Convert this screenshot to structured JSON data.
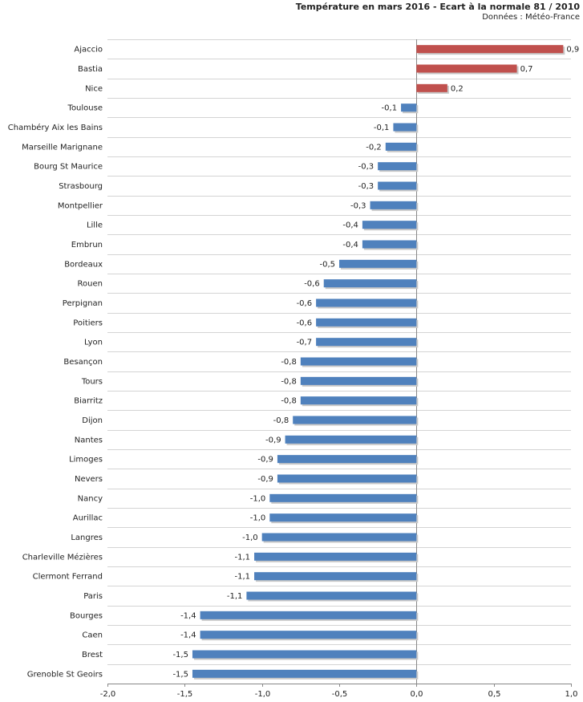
{
  "chart_data": {
    "type": "bar",
    "orientation": "horizontal",
    "title": "Température en mars 2016 - Ecart à la normale 81 / 2010",
    "subtitle": "Données : Météo-France",
    "xlabel": "",
    "ylabel": "",
    "xlim": [
      -2.0,
      1.0
    ],
    "xticks": [
      "-2,0",
      "-1,5",
      "-1,0",
      "-0,5",
      "0,0",
      "0,5",
      "1,0"
    ],
    "xtick_values": [
      -2.0,
      -1.5,
      -1.0,
      -0.5,
      0.0,
      0.5,
      1.0
    ],
    "grid": "horizontal lines between categories",
    "positive_color": "#c0504d",
    "negative_color": "#4f81bd",
    "categories": [
      "Ajaccio",
      "Bastia",
      "Nice",
      "Toulouse",
      "Chambéry Aix les Bains",
      "Marseille Marignane",
      "Bourg St Maurice",
      "Strasbourg",
      "Montpellier",
      "Lille",
      "Embrun",
      "Bordeaux",
      "Rouen",
      "Perpignan",
      "Poitiers",
      "Lyon",
      "Besançon",
      "Tours",
      "Biarritz",
      "Dijon",
      "Nantes",
      "Limoges",
      "Nevers",
      "Nancy",
      "Aurillac",
      "Langres",
      "Charleville Mézières",
      "Clermont Ferrand",
      "Paris",
      "Bourges",
      "Caen",
      "Brest",
      "Grenoble St Geoirs"
    ],
    "values": [
      0.95,
      0.65,
      0.2,
      -0.1,
      -0.15,
      -0.2,
      -0.25,
      -0.25,
      -0.3,
      -0.35,
      -0.35,
      -0.5,
      -0.6,
      -0.65,
      -0.65,
      -0.65,
      -0.75,
      -0.75,
      -0.75,
      -0.8,
      -0.85,
      -0.9,
      -0.9,
      -0.95,
      -0.95,
      -1.0,
      -1.05,
      -1.05,
      -1.1,
      -1.4,
      -1.4,
      -1.45,
      -1.45
    ],
    "value_labels": [
      "0,9",
      "0,7",
      "0,2",
      "-0,1",
      "-0,1",
      "-0,2",
      "-0,3",
      "-0,3",
      "-0,3",
      "-0,4",
      "-0,4",
      "-0,5",
      "-0,6",
      "-0,6",
      "-0,6",
      "-0,7",
      "-0,8",
      "-0,8",
      "-0,8",
      "-0,8",
      "-0,9",
      "-0,9",
      "-0,9",
      "-1,0",
      "-1,0",
      "-1,0",
      "-1,1",
      "-1,1",
      "-1,1",
      "-1,4",
      "-1,4",
      "-1,5",
      "-1,5"
    ]
  }
}
